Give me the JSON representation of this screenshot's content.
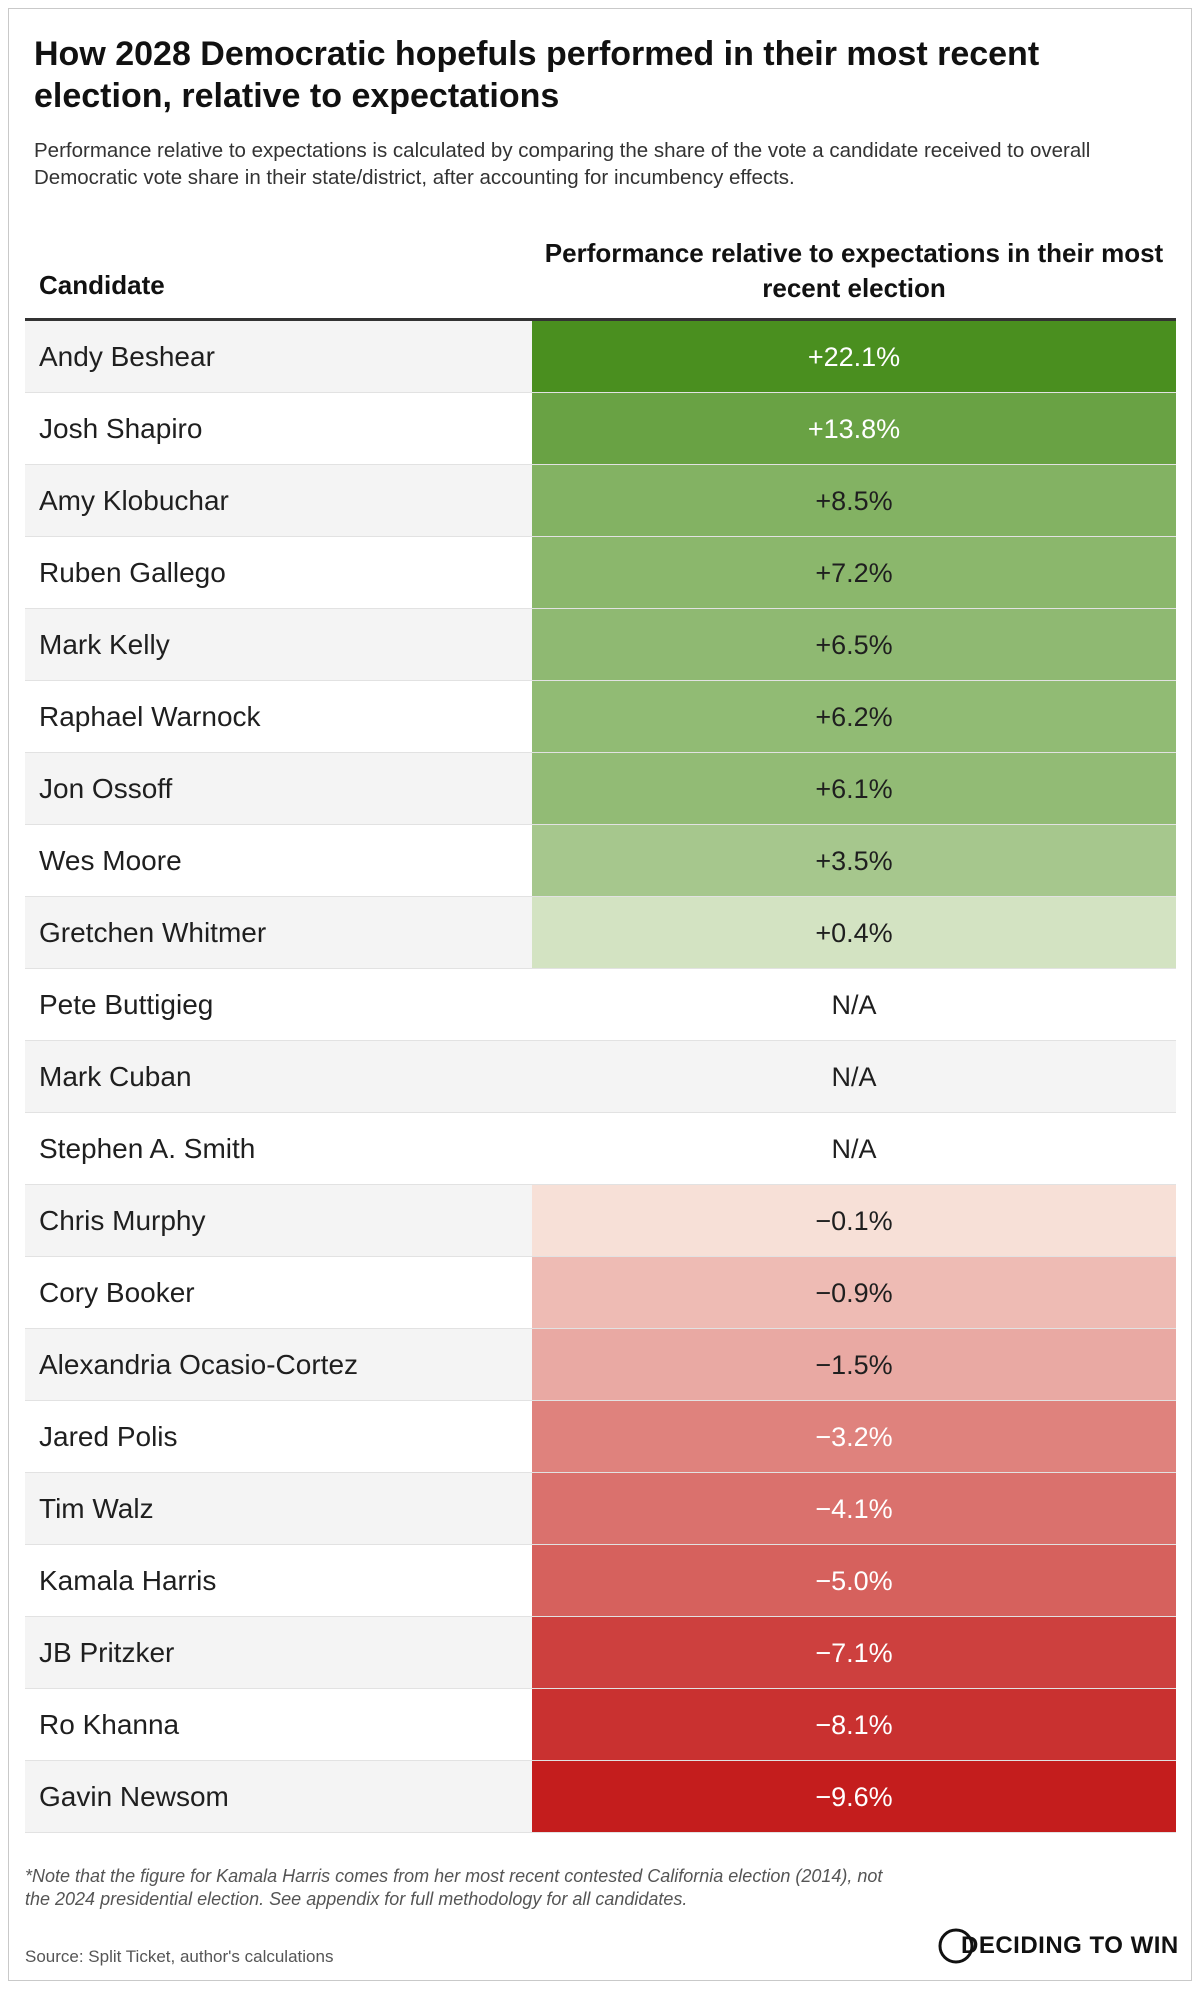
{
  "title": "How 2028 Democratic hopefuls performed in their most recent election, relative to expectations",
  "subtitle": "Performance relative to expectations is calculated by comparing the share of the vote a candidate received to overall Democratic vote share in their state/district, after accounting for incumbency effects.",
  "note": "*Note that the figure for Kamala Harris comes from her most recent contested California election (2014), not the 2024 presidential election. See appendix for full methodology for all candidates.",
  "source": "Source: Split Ticket, author's calculations",
  "logo_text": "DECIDING TO WIN",
  "chart_data": {
    "type": "table",
    "columns": [
      "Candidate",
      "Performance relative to expectations in their most recent election"
    ],
    "rows": [
      {
        "candidate": "Andy Beshear",
        "value": 22.1,
        "label": "+22.1%"
      },
      {
        "candidate": "Josh Shapiro",
        "value": 13.8,
        "label": "+13.8%"
      },
      {
        "candidate": "Amy Klobuchar",
        "value": 8.5,
        "label": "+8.5%"
      },
      {
        "candidate": "Ruben Gallego",
        "value": 7.2,
        "label": "+7.2%"
      },
      {
        "candidate": "Mark Kelly",
        "value": 6.5,
        "label": "+6.5%"
      },
      {
        "candidate": "Raphael Warnock",
        "value": 6.2,
        "label": "+6.2%"
      },
      {
        "candidate": "Jon Ossoff",
        "value": 6.1,
        "label": "+6.1%"
      },
      {
        "candidate": "Wes Moore",
        "value": 3.5,
        "label": "+3.5%"
      },
      {
        "candidate": "Gretchen Whitmer",
        "value": 0.4,
        "label": "+0.4%"
      },
      {
        "candidate": "Pete Buttigieg",
        "value": null,
        "label": "N/A"
      },
      {
        "candidate": "Mark Cuban",
        "value": null,
        "label": "N/A"
      },
      {
        "candidate": "Stephen A. Smith",
        "value": null,
        "label": "N/A"
      },
      {
        "candidate": "Chris Murphy",
        "value": -0.1,
        "label": "−0.1%"
      },
      {
        "candidate": "Cory Booker",
        "value": -0.9,
        "label": "−0.9%"
      },
      {
        "candidate": "Alexandria Ocasio-Cortez",
        "value": -1.5,
        "label": "−1.5%"
      },
      {
        "candidate": "Jared Polis",
        "value": -3.2,
        "label": "−3.2%"
      },
      {
        "candidate": "Tim Walz",
        "value": -4.1,
        "label": "−4.1%"
      },
      {
        "candidate": "Kamala Harris",
        "value": -5.0,
        "label": "−5.0%"
      },
      {
        "candidate": "JB Pritzker",
        "value": -7.1,
        "label": "−7.1%"
      },
      {
        "candidate": "Ro Khanna",
        "value": -8.1,
        "label": "−8.1%"
      },
      {
        "candidate": "Gavin Newsom",
        "value": -9.6,
        "label": "−9.6%"
      }
    ],
    "colors": {
      "positive_strong": "#4a8f1f",
      "positive_light": "#eef3e2",
      "negative_light": "#fbeee4",
      "negative_strong": "#c41d1d",
      "text_dark": "#1f1f1f",
      "text_light": "#ffffff"
    }
  }
}
